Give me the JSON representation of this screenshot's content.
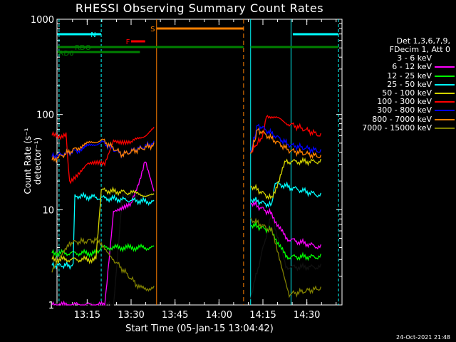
{
  "chart_data": {
    "type": "line",
    "title": "RHESSI Observing Summary Count Rates",
    "xlabel": "Start Time (05-Jan-15 13:04:42)",
    "ylabel": "Count Rate (s⁻¹ detector⁻¹)",
    "y_scale": "log",
    "ylim": [
      1,
      1000
    ],
    "xlim_minutes": [
      "13:04:42",
      "14:42"
    ],
    "x_ticks": [
      "13:15",
      "13:30",
      "13:45",
      "14:00",
      "14:15",
      "14:30"
    ],
    "y_ticks": [
      "1",
      "10",
      "100",
      "1000"
    ],
    "legend_header": [
      "Det 1,3,6,7,9,",
      "FDecim 1, Att 0"
    ],
    "legend_placement": "right",
    "series": [
      {
        "name": "3 - 6 keV",
        "color": "#000000",
        "seg1": [
          [
            13.05,
            1.0
          ],
          [
            13.4,
            1.0
          ],
          [
            13.45,
            14
          ],
          [
            13.63,
            14
          ]
        ],
        "seg2": [
          [
            14.18,
            1.2
          ],
          [
            14.3,
            9
          ],
          [
            14.38,
            2.5
          ],
          [
            14.58,
            2.5
          ]
        ]
      },
      {
        "name": "6 - 12 keV",
        "color": "#ff00ff",
        "seg1": [
          [
            13.05,
            1.0
          ],
          [
            13.35,
            1.0
          ],
          [
            13.4,
            10
          ],
          [
            13.5,
            11
          ],
          [
            13.58,
            32
          ],
          [
            13.63,
            15
          ]
        ],
        "seg2": [
          [
            14.18,
            12
          ],
          [
            14.3,
            9
          ],
          [
            14.38,
            5
          ],
          [
            14.58,
            4
          ]
        ]
      },
      {
        "name": "12 - 25 keV",
        "color": "#00ff00",
        "seg1": [
          [
            13.05,
            3.5
          ],
          [
            13.3,
            3.5
          ],
          [
            13.33,
            4
          ],
          [
            13.63,
            4
          ]
        ],
        "seg2": [
          [
            14.18,
            7
          ],
          [
            14.3,
            6
          ],
          [
            14.38,
            3.2
          ],
          [
            14.58,
            3.2
          ]
        ]
      },
      {
        "name": "25 - 50 keV",
        "color": "#00ffff",
        "seg1": [
          [
            13.05,
            2.6
          ],
          [
            13.17,
            2.6
          ],
          [
            13.18,
            14
          ],
          [
            13.63,
            12
          ]
        ],
        "seg2": [
          [
            14.18,
            13
          ],
          [
            14.3,
            11
          ],
          [
            14.32,
            19
          ],
          [
            14.58,
            14
          ]
        ]
      },
      {
        "name": "50 - 100 keV",
        "color": "#d4d400",
        "seg1": [
          [
            13.05,
            3.0
          ],
          [
            13.3,
            3.0
          ],
          [
            13.33,
            16
          ],
          [
            13.5,
            15
          ],
          [
            13.63,
            14
          ]
        ],
        "seg2": [
          [
            14.18,
            18
          ],
          [
            14.3,
            13
          ],
          [
            14.38,
            32
          ],
          [
            14.58,
            32
          ]
        ]
      },
      {
        "name": "100 - 300 keV",
        "color": "#ff0000",
        "seg1": [
          [
            13.05,
            60
          ],
          [
            13.13,
            60
          ],
          [
            13.15,
            20
          ],
          [
            13.25,
            30
          ],
          [
            13.35,
            30
          ],
          [
            13.4,
            55
          ],
          [
            13.5,
            50
          ],
          [
            13.63,
            70
          ]
        ],
        "seg2": [
          [
            14.18,
            40
          ],
          [
            14.25,
            60
          ],
          [
            14.27,
            100
          ],
          [
            14.4,
            80
          ],
          [
            14.58,
            60
          ]
        ]
      },
      {
        "name": "300 - 800 keV",
        "color": "#0000ff",
        "seg1": [
          [
            13.05,
            36
          ],
          [
            13.2,
            42
          ],
          [
            13.33,
            52
          ],
          [
            13.45,
            38
          ],
          [
            13.63,
            50
          ]
        ],
        "seg2": [
          [
            14.18,
            40
          ],
          [
            14.22,
            78
          ],
          [
            14.4,
            48
          ],
          [
            14.58,
            41
          ]
        ]
      },
      {
        "name": "800 - 7000 keV",
        "color": "#ff8000",
        "seg1": [
          [
            13.05,
            33
          ],
          [
            13.2,
            45
          ],
          [
            13.33,
            55
          ],
          [
            13.45,
            38
          ],
          [
            13.63,
            48
          ]
        ],
        "seg2": [
          [
            14.18,
            38
          ],
          [
            14.22,
            70
          ],
          [
            14.4,
            42
          ],
          [
            14.58,
            36
          ]
        ]
      },
      {
        "name": "7000 - 15000 keV",
        "color": "#808000",
        "seg1": [
          [
            13.05,
            2.2
          ],
          [
            13.15,
            4.5
          ],
          [
            13.3,
            4.8
          ],
          [
            13.4,
            3
          ],
          [
            13.55,
            1.5
          ],
          [
            13.63,
            1.5
          ]
        ],
        "seg2": [
          [
            14.18,
            8
          ],
          [
            14.3,
            6
          ],
          [
            14.4,
            1.3
          ],
          [
            14.58,
            1.5
          ]
        ]
      }
    ],
    "annotations": {
      "N": {
        "label": "N",
        "color": "#00ffff"
      },
      "F": {
        "label": "F",
        "color": "#ff0000"
      },
      "S": {
        "label": "S",
        "color": "#ff8000"
      },
      "RDO": {
        "label": "RDO",
        "color": "#008000"
      },
      "RD6": {
        "label": "RD6",
        "color": "#008000"
      }
    }
  },
  "footer_timestamp": "24-Oct-2021 21:48"
}
